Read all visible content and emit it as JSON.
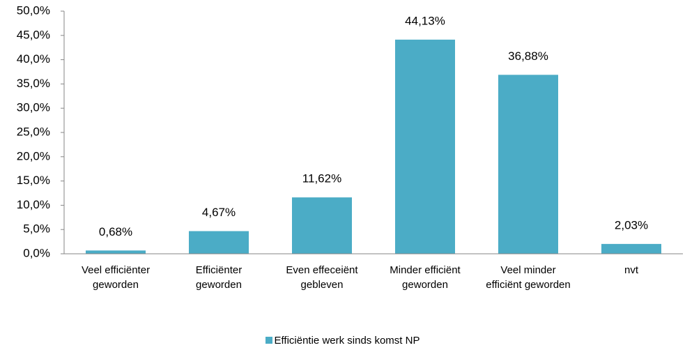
{
  "chart_data": {
    "type": "bar",
    "categories": [
      "Veel efficiënter geworden",
      "Efficiënter geworden",
      "Even effeceiënt gebleven",
      "Minder efficiënt geworden",
      "Veel minder efficiënt geworden",
      "nvt"
    ],
    "series": [
      {
        "name": "Efficiëntie werk sinds komst NP",
        "color": "#4bacc6",
        "values": [
          0.68,
          4.67,
          11.62,
          44.13,
          36.88,
          2.03
        ],
        "value_labels": [
          "0,68%",
          "4,67%",
          "11,62%",
          "44,13%",
          "36,88%",
          "2,03%"
        ]
      }
    ],
    "ylim": [
      0,
      50
    ],
    "yticks": [
      {
        "value": 0,
        "label": "0,0%"
      },
      {
        "value": 5,
        "label": "5,0%"
      },
      {
        "value": 10,
        "label": "10,0%"
      },
      {
        "value": 15,
        "label": "15,0%"
      },
      {
        "value": 20,
        "label": "20,0%"
      },
      {
        "value": 25,
        "label": "25,0%"
      },
      {
        "value": 30,
        "label": "30,0%"
      },
      {
        "value": 35,
        "label": "35,0%"
      },
      {
        "value": 40,
        "label": "40,0%"
      },
      {
        "value": 45,
        "label": "45,0%"
      },
      {
        "value": 50,
        "label": "50,0%"
      }
    ],
    "legend": "bottom"
  }
}
